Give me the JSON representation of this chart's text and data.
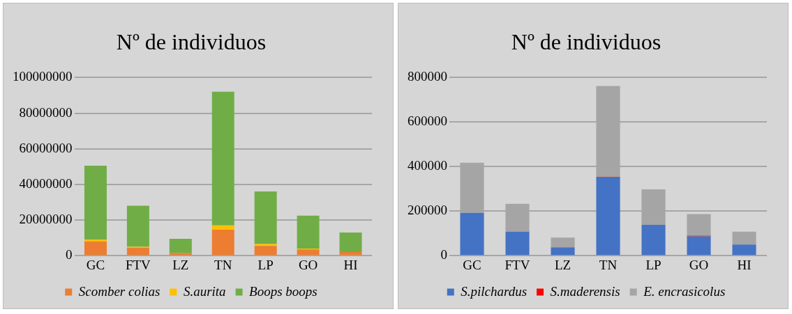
{
  "chart_data": [
    {
      "type": "bar",
      "title": "Nº de individuos",
      "stacked": true,
      "categories": [
        "GC",
        "FTV",
        "LZ",
        "TN",
        "LP",
        "GO",
        "HI"
      ],
      "series": [
        {
          "name": "Scomber colias",
          "color": "#ed7d31",
          "values": [
            8000000,
            4500000,
            1500000,
            14500000,
            5500000,
            3500000,
            2000000
          ]
        },
        {
          "name": "S.aurita",
          "color": "#ffc000",
          "values": [
            1000000,
            500000,
            0,
            2500000,
            1000000,
            500000,
            0
          ]
        },
        {
          "name": "Boops boops",
          "color": "#70ad47",
          "values": [
            41500000,
            23000000,
            8000000,
            75000000,
            29500000,
            18500000,
            11000000
          ]
        }
      ],
      "ylim": [
        0,
        100000000
      ],
      "yticks": [
        0,
        20000000,
        40000000,
        60000000,
        80000000,
        100000000
      ],
      "grid": "y",
      "legend": "bottom"
    },
    {
      "type": "bar",
      "title": "Nº de individuos",
      "stacked": true,
      "categories": [
        "GC",
        "FTV",
        "LZ",
        "TN",
        "LP",
        "GO",
        "HI"
      ],
      "series": [
        {
          "name": "S.pilchardus",
          "color": "#4472c4",
          "values": [
            192000,
            108000,
            37000,
            352000,
            138000,
            87000,
            50000
          ]
        },
        {
          "name": "S.maderensis",
          "color": "#ff0000",
          "values": [
            0,
            0,
            0,
            2000,
            0,
            3000,
            0
          ]
        },
        {
          "name": "E. encrasicolus",
          "color": "#a5a5a5",
          "values": [
            225000,
            125000,
            44000,
            408000,
            160000,
            97000,
            58000
          ]
        }
      ],
      "ylim": [
        0,
        800000
      ],
      "yticks": [
        0,
        200000,
        400000,
        600000,
        800000
      ],
      "grid": "y",
      "legend": "bottom"
    }
  ]
}
